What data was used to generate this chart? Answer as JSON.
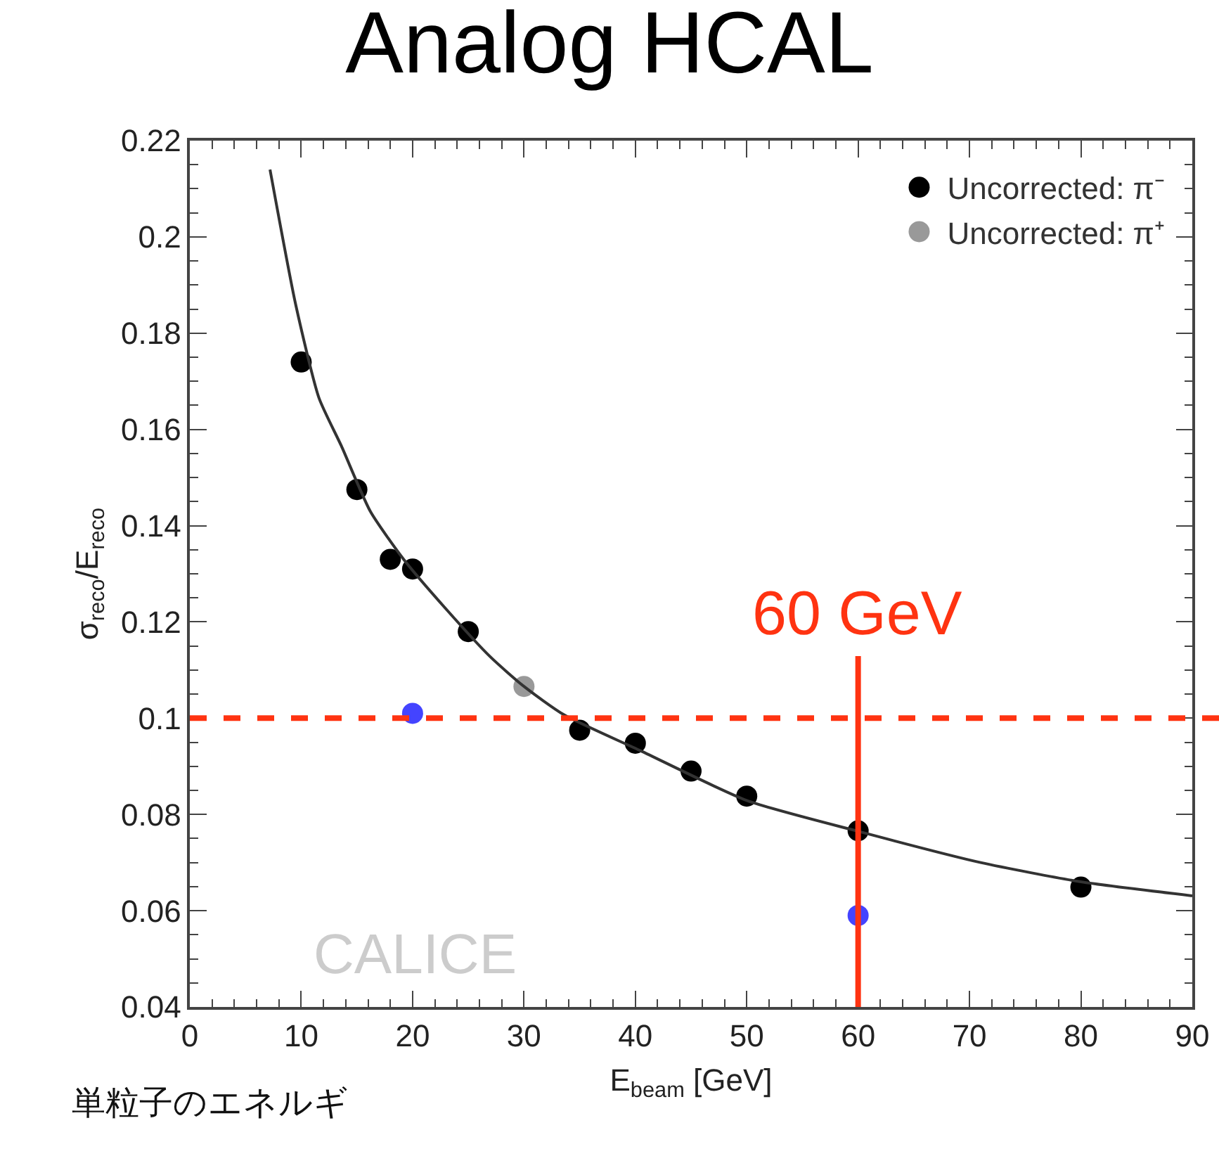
{
  "chart_data": {
    "type": "scatter",
    "title": "Analog HCAL",
    "xlabel": "E$_{beam}$ [GeV]",
    "ylabel": "σ$_{reco}$/E$_{reco}$",
    "xlim": [
      0,
      90
    ],
    "xticks": [
      0,
      10,
      20,
      30,
      40,
      50,
      60,
      70,
      80,
      90
    ],
    "ylim": [
      0.04,
      0.22
    ],
    "yticks": [
      0.04,
      0.06,
      0.08,
      0.1,
      0.12,
      0.14,
      0.16,
      0.18,
      0.2,
      0.22
    ],
    "grid": false,
    "legend": "top right",
    "marker": "circle",
    "series": [
      {
        "name": "Uncorrected: π⁻",
        "color": "#000000",
        "x": [
          10,
          15,
          18,
          20,
          25,
          35,
          40,
          45,
          50,
          60,
          80
        ],
        "values": [
          0.174,
          0.1475,
          0.133,
          0.131,
          0.118,
          0.0975,
          0.0948,
          0.089,
          0.0838,
          0.0766,
          0.0649
        ]
      },
      {
        "name": "Uncorrected: π⁺",
        "color": "#999999",
        "x": [
          30
        ],
        "values": [
          0.1066
        ]
      },
      {
        "color": "#4444ff",
        "x": [
          20,
          60
        ],
        "values": [
          0.101,
          0.059
        ]
      },
      {
        "type": "line",
        "marker": "none",
        "color": "#333333",
        "x": [
          7.2,
          9.5,
          11.6,
          13.6,
          16.2,
          19.2,
          23,
          27,
          30,
          33.6,
          40.5,
          50,
          60,
          71,
          80,
          90
        ],
        "values": [
          0.214,
          0.186,
          0.1665,
          0.1566,
          0.143,
          0.133,
          0.1227,
          0.1127,
          0.1066,
          0.1007,
          0.0932,
          0.0829,
          0.0765,
          0.07,
          0.066,
          0.0631
        ]
      }
    ],
    "ref_lines": [
      {
        "axis": "y",
        "value": 0.1,
        "color": "#ff3311",
        "line_style": "dashed"
      },
      {
        "axis": "x",
        "value": 60,
        "label": "60 GeV",
        "color": "#ff3311",
        "line_style": "solid"
      }
    ],
    "annotations": [
      "CALICE",
      "単粒子のエネルギ"
    ]
  }
}
